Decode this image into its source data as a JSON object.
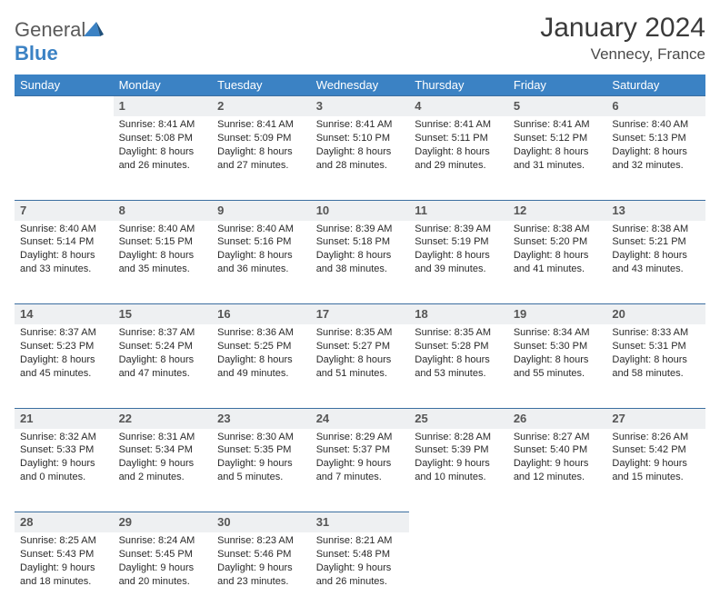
{
  "brand": {
    "name_a": "General",
    "name_b": "Blue"
  },
  "header": {
    "title": "January 2024",
    "location": "Vennecy, France"
  },
  "colors": {
    "header_bg": "#3b82c4",
    "header_text": "#ffffff",
    "daynum_bg": "#eef0f2",
    "border": "#3b6ea0",
    "logo_gray": "#5a5a5a",
    "logo_blue": "#3b82c4"
  },
  "weekdays": [
    "Sunday",
    "Monday",
    "Tuesday",
    "Wednesday",
    "Thursday",
    "Friday",
    "Saturday"
  ],
  "weeks": [
    {
      "nums": [
        "",
        "1",
        "2",
        "3",
        "4",
        "5",
        "6"
      ],
      "cells": [
        null,
        {
          "sunrise": "Sunrise: 8:41 AM",
          "sunset": "Sunset: 5:08 PM",
          "dl1": "Daylight: 8 hours",
          "dl2": "and 26 minutes."
        },
        {
          "sunrise": "Sunrise: 8:41 AM",
          "sunset": "Sunset: 5:09 PM",
          "dl1": "Daylight: 8 hours",
          "dl2": "and 27 minutes."
        },
        {
          "sunrise": "Sunrise: 8:41 AM",
          "sunset": "Sunset: 5:10 PM",
          "dl1": "Daylight: 8 hours",
          "dl2": "and 28 minutes."
        },
        {
          "sunrise": "Sunrise: 8:41 AM",
          "sunset": "Sunset: 5:11 PM",
          "dl1": "Daylight: 8 hours",
          "dl2": "and 29 minutes."
        },
        {
          "sunrise": "Sunrise: 8:41 AM",
          "sunset": "Sunset: 5:12 PM",
          "dl1": "Daylight: 8 hours",
          "dl2": "and 31 minutes."
        },
        {
          "sunrise": "Sunrise: 8:40 AM",
          "sunset": "Sunset: 5:13 PM",
          "dl1": "Daylight: 8 hours",
          "dl2": "and 32 minutes."
        }
      ]
    },
    {
      "nums": [
        "7",
        "8",
        "9",
        "10",
        "11",
        "12",
        "13"
      ],
      "cells": [
        {
          "sunrise": "Sunrise: 8:40 AM",
          "sunset": "Sunset: 5:14 PM",
          "dl1": "Daylight: 8 hours",
          "dl2": "and 33 minutes."
        },
        {
          "sunrise": "Sunrise: 8:40 AM",
          "sunset": "Sunset: 5:15 PM",
          "dl1": "Daylight: 8 hours",
          "dl2": "and 35 minutes."
        },
        {
          "sunrise": "Sunrise: 8:40 AM",
          "sunset": "Sunset: 5:16 PM",
          "dl1": "Daylight: 8 hours",
          "dl2": "and 36 minutes."
        },
        {
          "sunrise": "Sunrise: 8:39 AM",
          "sunset": "Sunset: 5:18 PM",
          "dl1": "Daylight: 8 hours",
          "dl2": "and 38 minutes."
        },
        {
          "sunrise": "Sunrise: 8:39 AM",
          "sunset": "Sunset: 5:19 PM",
          "dl1": "Daylight: 8 hours",
          "dl2": "and 39 minutes."
        },
        {
          "sunrise": "Sunrise: 8:38 AM",
          "sunset": "Sunset: 5:20 PM",
          "dl1": "Daylight: 8 hours",
          "dl2": "and 41 minutes."
        },
        {
          "sunrise": "Sunrise: 8:38 AM",
          "sunset": "Sunset: 5:21 PM",
          "dl1": "Daylight: 8 hours",
          "dl2": "and 43 minutes."
        }
      ]
    },
    {
      "nums": [
        "14",
        "15",
        "16",
        "17",
        "18",
        "19",
        "20"
      ],
      "cells": [
        {
          "sunrise": "Sunrise: 8:37 AM",
          "sunset": "Sunset: 5:23 PM",
          "dl1": "Daylight: 8 hours",
          "dl2": "and 45 minutes."
        },
        {
          "sunrise": "Sunrise: 8:37 AM",
          "sunset": "Sunset: 5:24 PM",
          "dl1": "Daylight: 8 hours",
          "dl2": "and 47 minutes."
        },
        {
          "sunrise": "Sunrise: 8:36 AM",
          "sunset": "Sunset: 5:25 PM",
          "dl1": "Daylight: 8 hours",
          "dl2": "and 49 minutes."
        },
        {
          "sunrise": "Sunrise: 8:35 AM",
          "sunset": "Sunset: 5:27 PM",
          "dl1": "Daylight: 8 hours",
          "dl2": "and 51 minutes."
        },
        {
          "sunrise": "Sunrise: 8:35 AM",
          "sunset": "Sunset: 5:28 PM",
          "dl1": "Daylight: 8 hours",
          "dl2": "and 53 minutes."
        },
        {
          "sunrise": "Sunrise: 8:34 AM",
          "sunset": "Sunset: 5:30 PM",
          "dl1": "Daylight: 8 hours",
          "dl2": "and 55 minutes."
        },
        {
          "sunrise": "Sunrise: 8:33 AM",
          "sunset": "Sunset: 5:31 PM",
          "dl1": "Daylight: 8 hours",
          "dl2": "and 58 minutes."
        }
      ]
    },
    {
      "nums": [
        "21",
        "22",
        "23",
        "24",
        "25",
        "26",
        "27"
      ],
      "cells": [
        {
          "sunrise": "Sunrise: 8:32 AM",
          "sunset": "Sunset: 5:33 PM",
          "dl1": "Daylight: 9 hours",
          "dl2": "and 0 minutes."
        },
        {
          "sunrise": "Sunrise: 8:31 AM",
          "sunset": "Sunset: 5:34 PM",
          "dl1": "Daylight: 9 hours",
          "dl2": "and 2 minutes."
        },
        {
          "sunrise": "Sunrise: 8:30 AM",
          "sunset": "Sunset: 5:35 PM",
          "dl1": "Daylight: 9 hours",
          "dl2": "and 5 minutes."
        },
        {
          "sunrise": "Sunrise: 8:29 AM",
          "sunset": "Sunset: 5:37 PM",
          "dl1": "Daylight: 9 hours",
          "dl2": "and 7 minutes."
        },
        {
          "sunrise": "Sunrise: 8:28 AM",
          "sunset": "Sunset: 5:39 PM",
          "dl1": "Daylight: 9 hours",
          "dl2": "and 10 minutes."
        },
        {
          "sunrise": "Sunrise: 8:27 AM",
          "sunset": "Sunset: 5:40 PM",
          "dl1": "Daylight: 9 hours",
          "dl2": "and 12 minutes."
        },
        {
          "sunrise": "Sunrise: 8:26 AM",
          "sunset": "Sunset: 5:42 PM",
          "dl1": "Daylight: 9 hours",
          "dl2": "and 15 minutes."
        }
      ]
    },
    {
      "nums": [
        "28",
        "29",
        "30",
        "31",
        "",
        "",
        ""
      ],
      "cells": [
        {
          "sunrise": "Sunrise: 8:25 AM",
          "sunset": "Sunset: 5:43 PM",
          "dl1": "Daylight: 9 hours",
          "dl2": "and 18 minutes."
        },
        {
          "sunrise": "Sunrise: 8:24 AM",
          "sunset": "Sunset: 5:45 PM",
          "dl1": "Daylight: 9 hours",
          "dl2": "and 20 minutes."
        },
        {
          "sunrise": "Sunrise: 8:23 AM",
          "sunset": "Sunset: 5:46 PM",
          "dl1": "Daylight: 9 hours",
          "dl2": "and 23 minutes."
        },
        {
          "sunrise": "Sunrise: 8:21 AM",
          "sunset": "Sunset: 5:48 PM",
          "dl1": "Daylight: 9 hours",
          "dl2": "and 26 minutes."
        },
        null,
        null,
        null
      ]
    }
  ]
}
